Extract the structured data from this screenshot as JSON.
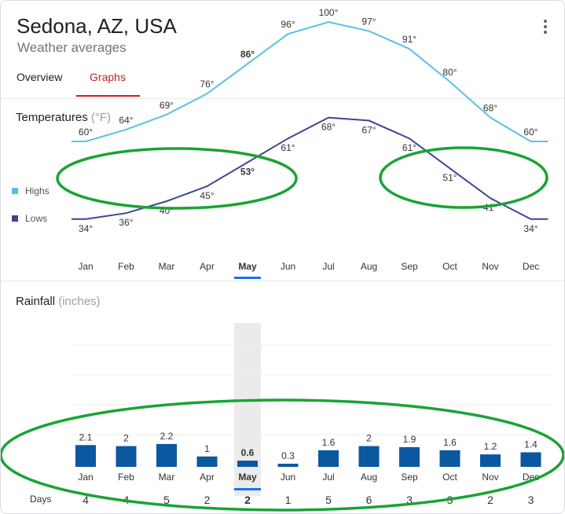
{
  "header": {
    "title": "Sedona, AZ, USA",
    "subtitle": "Weather averages"
  },
  "tabs": [
    {
      "label": "Overview",
      "active": false
    },
    {
      "label": "Graphs",
      "active": true
    }
  ],
  "temperatures": {
    "title": "Temperatures",
    "unit": "(°F)",
    "legend_highs": "Highs",
    "legend_lows": "Lows"
  },
  "rainfall": {
    "title": "Rainfall",
    "unit": "(inches)",
    "days_label": "Days"
  },
  "colors": {
    "highs": "#5bc0e8",
    "lows": "#3c4794",
    "rain": "#0b57a0",
    "selected_underline": "#1a73e8",
    "annotation": "#1aa336"
  },
  "selected_month": "May",
  "chart_data": [
    {
      "type": "line",
      "categories": [
        "Jan",
        "Feb",
        "Mar",
        "Apr",
        "May",
        "Jun",
        "Jul",
        "Aug",
        "Sep",
        "Oct",
        "Nov",
        "Dec"
      ],
      "series": [
        {
          "name": "Highs",
          "values": [
            60,
            64,
            69,
            76,
            86,
            96,
            100,
            97,
            91,
            80,
            68,
            60
          ],
          "labels": [
            "60°",
            "64°",
            "69°",
            "76°",
            "86°",
            "96°",
            "100°",
            "97°",
            "91°",
            "80°",
            "68°",
            "60°"
          ]
        },
        {
          "name": "Lows",
          "values": [
            34,
            36,
            40,
            45,
            53,
            61,
            68,
            67,
            61,
            51,
            41,
            34
          ],
          "labels": [
            "34°",
            "36°",
            "40°",
            "45°",
            "53°",
            "61°",
            "68°",
            "67°",
            "61°",
            "51°",
            "41°",
            "34°"
          ]
        }
      ],
      "ylim": [
        25,
        110
      ],
      "grid": false,
      "legend": "left"
    },
    {
      "type": "bar",
      "categories": [
        "Jan",
        "Feb",
        "Mar",
        "Apr",
        "May",
        "Jun",
        "Jul",
        "Aug",
        "Sep",
        "Oct",
        "Nov",
        "Dec"
      ],
      "values": [
        2.1,
        2,
        2.2,
        1,
        0.6,
        0.3,
        1.6,
        2,
        1.9,
        1.6,
        1.2,
        1.4
      ],
      "labels": [
        "2.1",
        "2",
        "2.2",
        "1",
        "0.6",
        "0.3",
        "1.6",
        "2",
        "1.9",
        "1.6",
        "1.2",
        "1.4"
      ],
      "days": [
        "4",
        "4",
        "5",
        "2",
        "2",
        "1",
        "5",
        "6",
        "3",
        "3",
        "2",
        "3"
      ],
      "ylim": [
        0,
        10
      ],
      "grid": true
    }
  ]
}
